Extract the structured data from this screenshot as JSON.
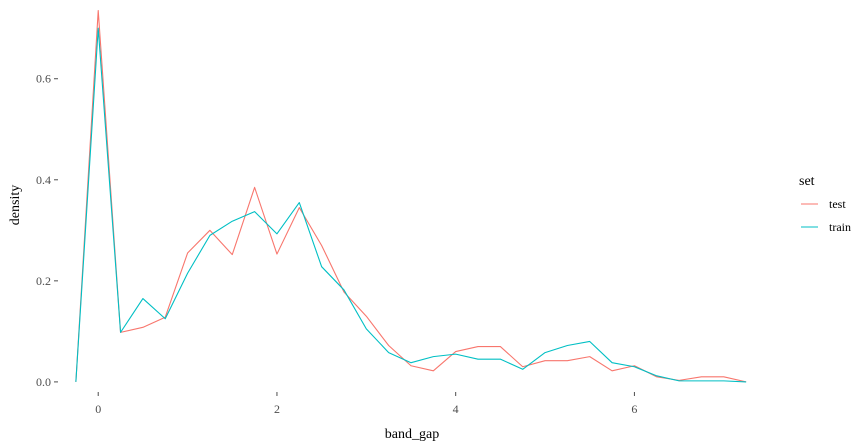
{
  "chart_data": {
    "type": "line",
    "title": "",
    "xlabel": "band_gap",
    "ylabel": "density",
    "xlim": [
      -0.45,
      7.45
    ],
    "ylim": [
      -0.02,
      0.74
    ],
    "x_ticks": [
      0,
      2,
      4,
      6
    ],
    "x_tick_labels": [
      "0",
      "2",
      "4",
      "6"
    ],
    "y_ticks": [
      0.0,
      0.2,
      0.4,
      0.6
    ],
    "y_tick_labels": [
      "0.0",
      "0.2",
      "0.4",
      "0.6"
    ],
    "grid": false,
    "legend": {
      "title": "set",
      "position": "right"
    },
    "x": [
      -0.25,
      0,
      0.25,
      0.5,
      0.75,
      1.0,
      1.25,
      1.5,
      1.75,
      2.0,
      2.25,
      2.5,
      2.75,
      3.0,
      3.25,
      3.5,
      3.75,
      4.0,
      4.25,
      4.5,
      4.75,
      5.0,
      5.25,
      5.5,
      5.75,
      6.0,
      6.25,
      6.5,
      6.75,
      7.0,
      7.25
    ],
    "series": [
      {
        "name": "test",
        "color": "#F8766D",
        "values": [
          0.0,
          0.735,
          0.098,
          0.108,
          0.128,
          0.255,
          0.3,
          0.252,
          0.385,
          0.253,
          0.345,
          0.27,
          0.178,
          0.13,
          0.072,
          0.032,
          0.022,
          0.06,
          0.07,
          0.07,
          0.03,
          0.042,
          0.042,
          0.05,
          0.022,
          0.032,
          0.01,
          0.003,
          0.01,
          0.01,
          0.0
        ]
      },
      {
        "name": "train",
        "color": "#00BFC4",
        "values": [
          0.0,
          0.7,
          0.098,
          0.165,
          0.125,
          0.215,
          0.29,
          0.318,
          0.337,
          0.293,
          0.355,
          0.228,
          0.182,
          0.105,
          0.058,
          0.038,
          0.05,
          0.055,
          0.045,
          0.045,
          0.025,
          0.058,
          0.072,
          0.08,
          0.038,
          0.03,
          0.012,
          0.002,
          0.002,
          0.002,
          0.0
        ]
      }
    ]
  }
}
